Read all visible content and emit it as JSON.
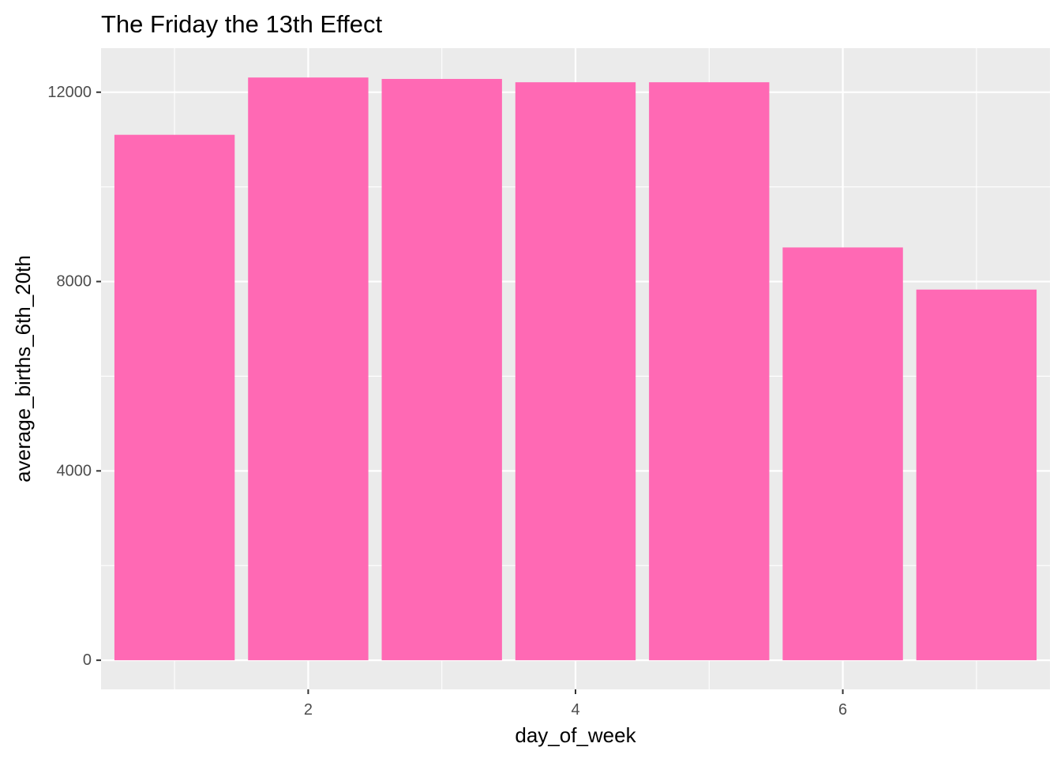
{
  "chart_data": {
    "type": "bar",
    "title": "The Friday the 13th Effect",
    "xlabel": "day_of_week",
    "ylabel": "average_births_6th_20th",
    "x": [
      1,
      2,
      3,
      4,
      5,
      6,
      7
    ],
    "values": [
      11100,
      12310,
      12280,
      12210,
      12210,
      8720,
      7830
    ],
    "xlim": [
      0.45,
      7.55
    ],
    "ylim": [
      -615,
      12930
    ],
    "x_ticks": [
      2,
      4,
      6
    ],
    "y_ticks": [
      0,
      4000,
      8000,
      12000
    ],
    "x_tick_labels": [
      "2",
      "4",
      "6"
    ],
    "y_tick_labels": [
      "0",
      "4000",
      "8000",
      "12000"
    ],
    "grid": true,
    "legend": "none",
    "bar_color": "#FF69B4",
    "panel_background": "#EBEBEB",
    "grid_color": "#FFFFFF"
  }
}
